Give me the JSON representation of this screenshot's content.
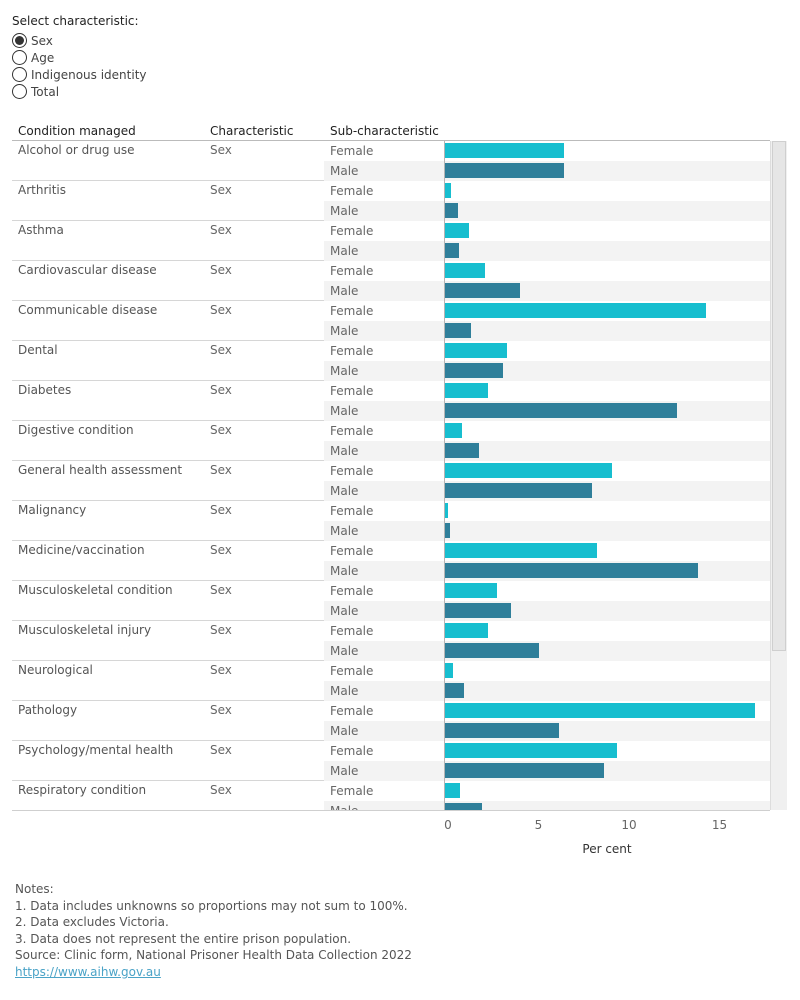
{
  "selector": {
    "title": "Select characteristic:",
    "options": [
      "Sex",
      "Age",
      "Indigenous identity",
      "Total"
    ],
    "selected": "Sex"
  },
  "headers": {
    "condition": "Condition managed",
    "characteristic": "Characteristic",
    "sub_characteristic": "Sub-characteristic"
  },
  "colors": {
    "female": "#17becf",
    "male": "#2f7f9a"
  },
  "chart_data": {
    "type": "bar",
    "orientation": "horizontal",
    "xlabel": "Per cent",
    "xlim": [
      0,
      17.5
    ],
    "xticks": [
      "0",
      "5",
      "10",
      "15"
    ],
    "characteristic": "Sex",
    "series": [
      {
        "name": "Female",
        "values": [
          6.6,
          0.35,
          1.35,
          2.2,
          14.4,
          3.4,
          2.4,
          0.95,
          9.2,
          0.15,
          8.4,
          2.9,
          2.4,
          0.45,
          17.1,
          9.5,
          0.85
        ]
      },
      {
        "name": "Male",
        "values": [
          6.6,
          0.7,
          0.8,
          4.15,
          1.45,
          3.2,
          12.8,
          1.9,
          8.1,
          0.25,
          14.0,
          3.65,
          5.2,
          1.05,
          6.3,
          8.8,
          2.05
        ]
      }
    ],
    "categories": [
      "Alcohol or drug use",
      "Arthritis",
      "Asthma",
      "Cardiovascular disease",
      "Communicable disease",
      "Dental",
      "Diabetes",
      "Digestive condition",
      "General health assessment",
      "Malignancy",
      "Medicine/vaccination",
      "Musculoskeletal condition",
      "Musculoskeletal injury",
      "Neurological",
      "Pathology",
      "Psychology/mental health",
      "Respiratory condition"
    ]
  },
  "notes": {
    "heading": "Notes:",
    "lines": [
      "1. Data includes unknowns so proportions may not sum to 100%.",
      "2. Data excludes Victoria.",
      "3. Data does not represent the entire prison population.",
      "Source: Clinic form, National Prisoner Health Data Collection 2022"
    ],
    "link": "https://www.aihw.gov.au"
  }
}
